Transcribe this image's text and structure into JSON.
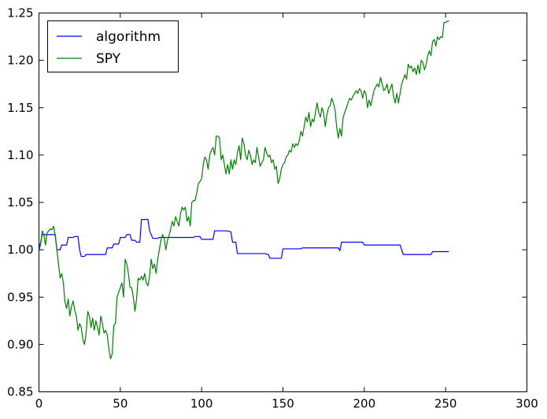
{
  "chart_data": {
    "type": "line",
    "title": "",
    "xlabel": "",
    "ylabel": "",
    "xlim": [
      0,
      300
    ],
    "ylim": [
      0.85,
      1.25
    ],
    "xticks": [
      0,
      50,
      100,
      150,
      200,
      250,
      300
    ],
    "yticks": [
      0.85,
      0.9,
      0.95,
      1.0,
      1.05,
      1.1,
      1.15,
      1.2,
      1.25
    ],
    "xtick_labels": [
      "0",
      "50",
      "100",
      "150",
      "200",
      "250",
      "300"
    ],
    "ytick_labels": [
      "0.85",
      "0.90",
      "0.95",
      "1.00",
      "1.05",
      "1.10",
      "1.15",
      "1.20",
      "1.25"
    ],
    "grid": false,
    "legend_position": "top-left",
    "series": [
      {
        "name": "algorithm",
        "color": "#0000ff",
        "points": [
          [
            0,
            1.0
          ],
          [
            2,
            1.016
          ],
          [
            10,
            1.016
          ],
          [
            11,
            1.0
          ],
          [
            13,
            1.0
          ],
          [
            14,
            1.005
          ],
          [
            17,
            1.005
          ],
          [
            18,
            1.013
          ],
          [
            21,
            1.013
          ],
          [
            22,
            1.014
          ],
          [
            24,
            1.014
          ],
          [
            25,
            1.0
          ],
          [
            26,
            0.993
          ],
          [
            28,
            0.993
          ],
          [
            29,
            0.995
          ],
          [
            41,
            0.995
          ],
          [
            42,
            1.002
          ],
          [
            45,
            1.002
          ],
          [
            46,
            1.006
          ],
          [
            49,
            1.006
          ],
          [
            50,
            1.013
          ],
          [
            53,
            1.013
          ],
          [
            54,
            1.016
          ],
          [
            56,
            1.016
          ],
          [
            57,
            1.01
          ],
          [
            59,
            1.01
          ],
          [
            60,
            1.008
          ],
          [
            62,
            1.008
          ],
          [
            63,
            1.032
          ],
          [
            67,
            1.032
          ],
          [
            68,
            1.02
          ],
          [
            70,
            1.012
          ],
          [
            73,
            1.012
          ],
          [
            74,
            1.013
          ],
          [
            95,
            1.013
          ],
          [
            96,
            1.014
          ],
          [
            99,
            1.014
          ],
          [
            100,
            1.011
          ],
          [
            107,
            1.011
          ],
          [
            108,
            1.02
          ],
          [
            115,
            1.02
          ],
          [
            118,
            1.019
          ],
          [
            119,
            1.008
          ],
          [
            121,
            1.008
          ],
          [
            122,
            0.996
          ],
          [
            139,
            0.996
          ],
          [
            141,
            0.995
          ],
          [
            142,
            0.991
          ],
          [
            149,
            0.991
          ],
          [
            150,
            1.001
          ],
          [
            161,
            1.001
          ],
          [
            162,
            1.002
          ],
          [
            184,
            1.002
          ],
          [
            185,
            0.999
          ],
          [
            186,
            1.008
          ],
          [
            199,
            1.008
          ],
          [
            200,
            1.005
          ],
          [
            222,
            1.005
          ],
          [
            224,
            0.995
          ],
          [
            241,
            0.995
          ],
          [
            242,
            0.998
          ],
          [
            252,
            0.998
          ]
        ]
      },
      {
        "name": "SPY",
        "color": "#008000",
        "points": [
          [
            0,
            1.0
          ],
          [
            1,
            1.005
          ],
          [
            2,
            1.02
          ],
          [
            3,
            1.016
          ],
          [
            4,
            1.005
          ],
          [
            5,
            1.018
          ],
          [
            6,
            1.02
          ],
          [
            7,
            1.022
          ],
          [
            8,
            1.021
          ],
          [
            9,
            1.025
          ],
          [
            10,
            1.015
          ],
          [
            11,
            1.0
          ],
          [
            12,
            0.985
          ],
          [
            13,
            0.97
          ],
          [
            14,
            0.975
          ],
          [
            15,
            0.965
          ],
          [
            16,
            0.945
          ],
          [
            17,
            0.938
          ],
          [
            18,
            0.948
          ],
          [
            19,
            0.93
          ],
          [
            20,
            0.94
          ],
          [
            21,
            0.946
          ],
          [
            22,
            0.936
          ],
          [
            23,
            0.93
          ],
          [
            24,
            0.915
          ],
          [
            25,
            0.922
          ],
          [
            26,
            0.918
          ],
          [
            27,
            0.905
          ],
          [
            28,
            0.9
          ],
          [
            29,
            0.912
          ],
          [
            30,
            0.935
          ],
          [
            31,
            0.93
          ],
          [
            32,
            0.918
          ],
          [
            33,
            0.928
          ],
          [
            34,
            0.915
          ],
          [
            35,
            0.925
          ],
          [
            36,
            0.918
          ],
          [
            37,
            0.91
          ],
          [
            38,
            0.93
          ],
          [
            39,
            0.922
          ],
          [
            40,
            0.912
          ],
          [
            41,
            0.915
          ],
          [
            42,
            0.91
          ],
          [
            43,
            0.895
          ],
          [
            44,
            0.885
          ],
          [
            45,
            0.89
          ],
          [
            46,
            0.92
          ],
          [
            47,
            0.922
          ],
          [
            48,
            0.95
          ],
          [
            49,
            0.955
          ],
          [
            50,
            0.96
          ],
          [
            51,
            0.965
          ],
          [
            52,
            0.95
          ],
          [
            53,
            0.99
          ],
          [
            54,
            0.985
          ],
          [
            55,
            0.975
          ],
          [
            56,
            0.96
          ],
          [
            57,
            0.96
          ],
          [
            58,
            0.95
          ],
          [
            59,
            0.935
          ],
          [
            60,
            0.948
          ],
          [
            61,
            0.97
          ],
          [
            62,
            0.968
          ],
          [
            63,
            0.972
          ],
          [
            64,
            0.968
          ],
          [
            65,
            0.975
          ],
          [
            66,
            0.965
          ],
          [
            67,
            0.962
          ],
          [
            68,
            0.972
          ],
          [
            69,
            0.99
          ],
          [
            70,
            0.98
          ],
          [
            71,
            0.985
          ],
          [
            72,
            0.975
          ],
          [
            73,
            0.99
          ],
          [
            74,
            1.0
          ],
          [
            75,
            1.01
          ],
          [
            76,
            1.016
          ],
          [
            77,
            1.012
          ],
          [
            78,
            1.0
          ],
          [
            79,
            1.01
          ],
          [
            80,
            1.015
          ],
          [
            81,
            1.022
          ],
          [
            82,
            1.03
          ],
          [
            83,
            1.025
          ],
          [
            84,
            1.035
          ],
          [
            85,
            1.03
          ],
          [
            86,
            1.025
          ],
          [
            87,
            1.038
          ],
          [
            88,
            1.045
          ],
          [
            89,
            1.042
          ],
          [
            90,
            1.045
          ],
          [
            91,
            1.03
          ],
          [
            92,
            1.035
          ],
          [
            93,
            1.025
          ],
          [
            94,
            1.05
          ],
          [
            95,
            1.052
          ],
          [
            96,
            1.052
          ],
          [
            97,
            1.06
          ],
          [
            98,
            1.07
          ],
          [
            99,
            1.072
          ],
          [
            100,
            1.075
          ],
          [
            101,
            1.09
          ],
          [
            102,
            1.098
          ],
          [
            103,
            1.095
          ],
          [
            104,
            1.085
          ],
          [
            105,
            1.1
          ],
          [
            106,
            1.105
          ],
          [
            107,
            1.108
          ],
          [
            108,
            1.1
          ],
          [
            109,
            1.12
          ],
          [
            110,
            1.12
          ],
          [
            111,
            1.118
          ],
          [
            112,
            1.095
          ],
          [
            113,
            1.1
          ],
          [
            114,
            1.09
          ],
          [
            115,
            1.08
          ],
          [
            116,
            1.09
          ],
          [
            117,
            1.08
          ],
          [
            118,
            1.095
          ],
          [
            119,
            1.085
          ],
          [
            120,
            1.095
          ],
          [
            121,
            1.09
          ],
          [
            122,
            1.102
          ],
          [
            123,
            1.11
          ],
          [
            124,
            1.095
          ],
          [
            125,
            1.118
          ],
          [
            126,
            1.112
          ],
          [
            127,
            1.1
          ],
          [
            128,
            1.095
          ],
          [
            129,
            1.105
          ],
          [
            130,
            1.1
          ],
          [
            131,
            1.09
          ],
          [
            132,
            1.095
          ],
          [
            133,
            1.092
          ],
          [
            134,
            1.108
          ],
          [
            135,
            1.098
          ],
          [
            136,
            1.088
          ],
          [
            137,
            1.092
          ],
          [
            138,
            1.095
          ],
          [
            139,
            1.108
          ],
          [
            140,
            1.102
          ],
          [
            141,
            1.098
          ],
          [
            142,
            1.1
          ],
          [
            143,
            1.092
          ],
          [
            144,
            1.095
          ],
          [
            145,
            1.085
          ],
          [
            146,
            1.088
          ],
          [
            147,
            1.07
          ],
          [
            148,
            1.075
          ],
          [
            149,
            1.085
          ],
          [
            150,
            1.09
          ],
          [
            151,
            1.092
          ],
          [
            152,
            1.098
          ],
          [
            153,
            1.1
          ],
          [
            154,
            1.105
          ],
          [
            155,
            1.103
          ],
          [
            156,
            1.112
          ],
          [
            157,
            1.108
          ],
          [
            158,
            1.112
          ],
          [
            159,
            1.11
          ],
          [
            160,
            1.115
          ],
          [
            161,
            1.125
          ],
          [
            162,
            1.12
          ],
          [
            163,
            1.13
          ],
          [
            164,
            1.14
          ],
          [
            165,
            1.135
          ],
          [
            166,
            1.145
          ],
          [
            167,
            1.13
          ],
          [
            168,
            1.138
          ],
          [
            169,
            1.135
          ],
          [
            170,
            1.145
          ],
          [
            171,
            1.155
          ],
          [
            172,
            1.145
          ],
          [
            173,
            1.14
          ],
          [
            174,
            1.15
          ],
          [
            175,
            1.145
          ],
          [
            176,
            1.13
          ],
          [
            177,
            1.142
          ],
          [
            178,
            1.15
          ],
          [
            179,
            1.152
          ],
          [
            180,
            1.16
          ],
          [
            181,
            1.155
          ],
          [
            182,
            1.148
          ],
          [
            183,
            1.13
          ],
          [
            184,
            1.118
          ],
          [
            185,
            1.128
          ],
          [
            186,
            1.12
          ],
          [
            187,
            1.14
          ],
          [
            188,
            1.145
          ],
          [
            189,
            1.15
          ],
          [
            190,
            1.155
          ],
          [
            191,
            1.16
          ],
          [
            192,
            1.158
          ],
          [
            193,
            1.162
          ],
          [
            194,
            1.165
          ],
          [
            195,
            1.168
          ],
          [
            196,
            1.165
          ],
          [
            197,
            1.17
          ],
          [
            198,
            1.168
          ],
          [
            199,
            1.16
          ],
          [
            200,
            1.168
          ],
          [
            201,
            1.165
          ],
          [
            202,
            1.15
          ],
          [
            203,
            1.158
          ],
          [
            204,
            1.152
          ],
          [
            205,
            1.16
          ],
          [
            206,
            1.168
          ],
          [
            207,
            1.172
          ],
          [
            208,
            1.175
          ],
          [
            209,
            1.172
          ],
          [
            210,
            1.182
          ],
          [
            211,
            1.175
          ],
          [
            212,
            1.168
          ],
          [
            213,
            1.17
          ],
          [
            214,
            1.175
          ],
          [
            215,
            1.165
          ],
          [
            216,
            1.17
          ],
          [
            217,
            1.175
          ],
          [
            218,
            1.162
          ],
          [
            219,
            1.155
          ],
          [
            220,
            1.165
          ],
          [
            221,
            1.155
          ],
          [
            222,
            1.165
          ],
          [
            223,
            1.175
          ],
          [
            224,
            1.18
          ],
          [
            225,
            1.185
          ],
          [
            226,
            1.18
          ],
          [
            227,
            1.196
          ],
          [
            228,
            1.192
          ],
          [
            229,
            1.194
          ],
          [
            230,
            1.188
          ],
          [
            231,
            1.192
          ],
          [
            232,
            1.185
          ],
          [
            233,
            1.195
          ],
          [
            234,
            1.186
          ],
          [
            235,
            1.2
          ],
          [
            236,
            1.198
          ],
          [
            237,
            1.19
          ],
          [
            238,
            1.195
          ],
          [
            239,
            1.205
          ],
          [
            240,
            1.21
          ],
          [
            241,
            1.205
          ],
          [
            242,
            1.22
          ],
          [
            243,
            1.222
          ],
          [
            244,
            1.215
          ],
          [
            245,
            1.225
          ],
          [
            246,
            1.222
          ],
          [
            247,
            1.225
          ],
          [
            248,
            1.224
          ],
          [
            249,
            1.24
          ],
          [
            250,
            1.24
          ],
          [
            251,
            1.241
          ],
          [
            252,
            1.242
          ]
        ]
      }
    ]
  }
}
